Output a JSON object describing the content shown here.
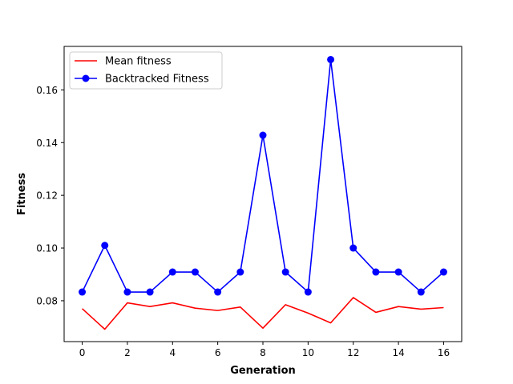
{
  "chart_data": {
    "type": "line",
    "title": "",
    "xlabel": "Generation",
    "ylabel": "Fitness",
    "xlim": [
      -0.8,
      16.8
    ],
    "ylim": [
      0.0645,
      0.1765
    ],
    "xticks": [
      0,
      2,
      4,
      6,
      8,
      10,
      12,
      14,
      16
    ],
    "yticks": [
      0.08,
      0.1,
      0.12,
      0.14,
      0.16
    ],
    "ytick_labels": [
      "0.08",
      "0.10",
      "0.12",
      "0.14",
      "0.16"
    ],
    "grid": false,
    "legend_position": "top-left",
    "x": [
      0,
      1,
      2,
      3,
      4,
      5,
      6,
      7,
      8,
      9,
      10,
      11,
      12,
      13,
      14,
      15,
      16
    ],
    "series": [
      {
        "name": "Mean fitness",
        "color": "#ff0000",
        "marker": "none",
        "values": [
          0.077,
          0.0692,
          0.0792,
          0.0778,
          0.0792,
          0.0772,
          0.0763,
          0.0776,
          0.0696,
          0.0785,
          0.0753,
          0.0716,
          0.0812,
          0.0756,
          0.0778,
          0.0768,
          0.0774
        ]
      },
      {
        "name": "Backtracked Fitness",
        "color": "#0000ff",
        "marker": "circle",
        "values": [
          0.0833,
          0.101,
          0.0833,
          0.0833,
          0.0909,
          0.0909,
          0.0833,
          0.0909,
          0.1428,
          0.0909,
          0.0833,
          0.1715,
          0.1,
          0.0909,
          0.0909,
          0.0833,
          0.0909
        ]
      }
    ]
  }
}
